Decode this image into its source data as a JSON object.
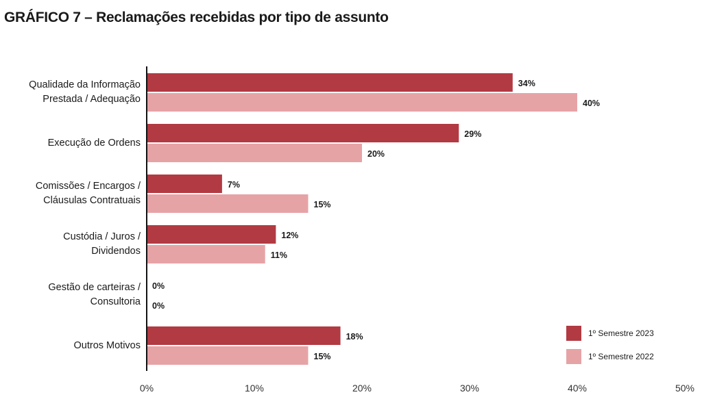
{
  "chart_data": {
    "type": "bar",
    "orientation": "horizontal",
    "title": "GRÁFICO 7 – Reclamações recebidas por tipo de assunto",
    "categories": [
      "Qualidade da Informação\nPrestada / Adequação",
      "Execução de Ordens",
      "Comissões / Encargos /\nCláusulas Contratuais",
      "Custódia / Juros /\nDividendos",
      "Gestão de carteiras /\nConsultoria",
      "Outros Motivos"
    ],
    "series": [
      {
        "name": "1º Semestre 2023",
        "color": "#b23a42",
        "values": [
          34,
          29,
          7,
          12,
          0,
          18
        ],
        "labels": [
          "34%",
          "29%",
          "7%",
          "12%",
          "0%",
          "18%"
        ]
      },
      {
        "name": "1º Semestre 2022",
        "color": "#e6a3a6",
        "values": [
          40,
          20,
          15,
          11,
          0,
          15
        ],
        "labels": [
          "40%",
          "20%",
          "15%",
          "11%",
          "0%",
          "15%"
        ]
      }
    ],
    "xlim": [
      0,
      50
    ],
    "xticks": [
      "0%",
      "10%",
      "20%",
      "30%",
      "40%",
      "50%"
    ],
    "xlabel": "",
    "ylabel": "",
    "grid": false,
    "legend_position": "bottom-right"
  }
}
